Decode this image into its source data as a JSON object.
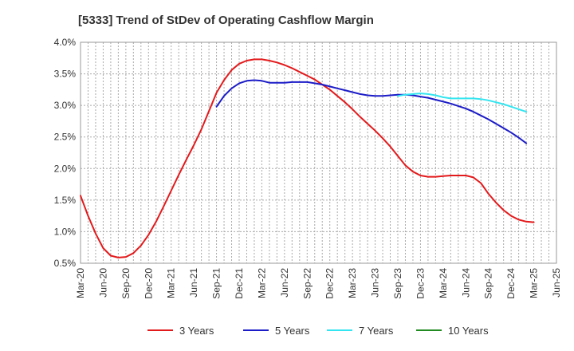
{
  "chart_data": {
    "type": "line",
    "title": "[5333]  Trend of StDev of Operating Cashflow Margin",
    "xlabel": "",
    "ylabel": "",
    "ylim": [
      0.5,
      4.0
    ],
    "y_ticks": [
      "4.0%",
      "3.5%",
      "3.0%",
      "2.5%",
      "2.0%",
      "1.5%",
      "1.0%",
      "0.5%"
    ],
    "y_tick_values": [
      4.0,
      3.5,
      3.0,
      2.5,
      2.0,
      1.5,
      1.0,
      0.5
    ],
    "x_ticks": [
      "Mar-20",
      "Jun-20",
      "Sep-20",
      "Dec-20",
      "Mar-21",
      "Jun-21",
      "Sep-21",
      "Dec-21",
      "Mar-22",
      "Jun-22",
      "Sep-22",
      "Dec-22",
      "Mar-23",
      "Jun-23",
      "Sep-23",
      "Dec-23",
      "Mar-24",
      "Jun-24",
      "Sep-24",
      "Dec-24",
      "Mar-25",
      "Jun-25"
    ],
    "grid": true,
    "legend_position": "bottom",
    "series": [
      {
        "name": "3 Years",
        "color": "#e31a1c",
        "start_index": 0,
        "values": [
          1.57,
          1.25,
          0.97,
          0.74,
          0.62,
          0.59,
          0.6,
          0.66,
          0.78,
          0.95,
          1.16,
          1.4,
          1.65,
          1.9,
          2.14,
          2.37,
          2.62,
          2.91,
          3.2,
          3.4,
          3.56,
          3.66,
          3.71,
          3.73,
          3.73,
          3.71,
          3.68,
          3.64,
          3.59,
          3.53,
          3.47,
          3.41,
          3.33,
          3.25,
          3.15,
          3.05,
          2.94,
          2.82,
          2.71,
          2.6,
          2.48,
          2.35,
          2.2,
          2.05,
          1.95,
          1.89,
          1.87,
          1.87,
          1.88,
          1.89,
          1.89,
          1.89,
          1.86,
          1.77,
          1.6,
          1.46,
          1.34,
          1.25,
          1.19,
          1.16,
          1.15
        ]
      },
      {
        "name": "5 Years",
        "color": "#1c1cc8",
        "start_index": 18,
        "values": [
          2.98,
          3.15,
          3.27,
          3.35,
          3.39,
          3.4,
          3.39,
          3.36,
          3.36,
          3.36,
          3.37,
          3.37,
          3.37,
          3.35,
          3.33,
          3.3,
          3.27,
          3.24,
          3.21,
          3.18,
          3.16,
          3.15,
          3.15,
          3.16,
          3.17,
          3.17,
          3.16,
          3.14,
          3.12,
          3.09,
          3.06,
          3.03,
          2.99,
          2.95,
          2.9,
          2.84,
          2.78,
          2.71,
          2.64,
          2.57,
          2.49,
          2.4
        ]
      },
      {
        "name": "7 Years",
        "color": "#33e5f0",
        "start_index": 42,
        "values": [
          3.15,
          3.17,
          3.18,
          3.19,
          3.18,
          3.16,
          3.13,
          3.11,
          3.11,
          3.11,
          3.11,
          3.1,
          3.08,
          3.05,
          3.02,
          2.98,
          2.94,
          2.9
        ]
      },
      {
        "name": "10 Years",
        "color": "#228b22",
        "start_index": 0,
        "values": []
      }
    ]
  }
}
